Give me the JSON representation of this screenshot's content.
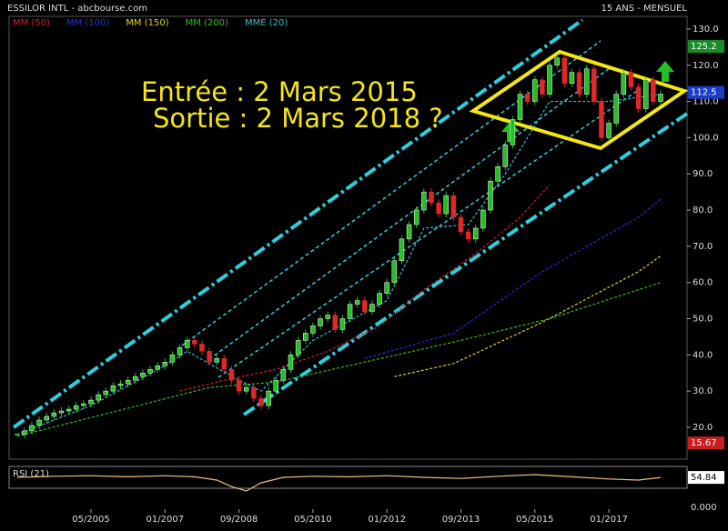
{
  "header": {
    "title": "ESSILOR INTL - abcbourse.com",
    "period": "15 ANS - MENSUEL"
  },
  "chart_data": {
    "type": "candlestick",
    "categories": [
      null,
      null,
      null,
      null,
      null,
      null,
      null,
      null,
      null,
      null,
      "05/2005",
      null,
      null,
      null,
      null,
      null,
      null,
      null,
      null,
      null,
      "01/2007",
      null,
      null,
      null,
      null,
      null,
      null,
      null,
      null,
      null,
      "09/2008",
      null,
      null,
      null,
      null,
      null,
      null,
      null,
      null,
      null,
      "05/2010",
      null,
      null,
      null,
      null,
      null,
      null,
      null,
      null,
      null,
      "01/2012",
      null,
      null,
      null,
      null,
      null,
      null,
      null,
      null,
      null,
      "09/2013",
      null,
      null,
      null,
      null,
      null,
      null,
      null,
      null,
      null,
      "05/2015",
      null,
      null,
      null,
      null,
      null,
      null,
      null,
      null,
      null,
      "01/2017",
      null,
      null,
      null,
      null,
      null,
      null,
      null
    ],
    "xlim": [
      -1.07,
      90.57
    ],
    "values": [
      18,
      19,
      20.5,
      22,
      23,
      24,
      24.5,
      25,
      26,
      26.5,
      27.5,
      29,
      30,
      31.5,
      32,
      33,
      34,
      35,
      36,
      37,
      38,
      40,
      42,
      44,
      43,
      41,
      38,
      39,
      36,
      33,
      30,
      31,
      28,
      26,
      30,
      33,
      36,
      40,
      44,
      46,
      48,
      50,
      51,
      47,
      50,
      54,
      55,
      52,
      54,
      57,
      60,
      66,
      72,
      76,
      80,
      85,
      82,
      79,
      84,
      78,
      74,
      72,
      75,
      80,
      88,
      92,
      98,
      105,
      112,
      110,
      116,
      112,
      120,
      122,
      115,
      118,
      112,
      119,
      110,
      100,
      104,
      112,
      118,
      114,
      108,
      116,
      110,
      112
    ],
    "up_color": "#22c022",
    "down_color": "#e02828",
    "ylim": [
      11.2,
      133.5
    ],
    "yticks": [
      {
        "value": 20,
        "label": "20.0"
      },
      {
        "value": 30,
        "label": "30.0"
      },
      {
        "value": 40,
        "label": "40.0"
      },
      {
        "value": 50,
        "label": "50.0"
      },
      {
        "value": 60,
        "label": "60.0"
      },
      {
        "value": 70,
        "label": "70.0"
      },
      {
        "value": 80,
        "label": "80.0"
      },
      {
        "value": 90,
        "label": "90.0"
      },
      {
        "value": 100,
        "label": "100.0"
      },
      {
        "value": 110,
        "label": "110.0"
      },
      {
        "value": 120,
        "label": "120.0"
      },
      {
        "value": 130,
        "label": "130.0"
      }
    ],
    "series": [
      {
        "name": "MM (50)",
        "color": "#d02020",
        "x": [
          22,
          28,
          35,
          42,
          49,
          55,
          62,
          68,
          72
        ],
        "values": [
          30,
          33,
          36,
          41,
          48,
          58,
          68,
          78,
          87
        ]
      },
      {
        "name": "MM (100)",
        "color": "#2030e0",
        "x": [
          47,
          59,
          71,
          84,
          87
        ],
        "values": [
          39,
          46,
          63,
          78,
          83
        ]
      },
      {
        "name": "MM (150)",
        "color": "#e0d020",
        "x": [
          51,
          59,
          71,
          84,
          87
        ],
        "values": [
          34,
          37.6,
          49,
          63,
          67.3
        ]
      },
      {
        "name": "MM (200)",
        "color": "#30c020",
        "x": [
          0,
          26,
          35,
          60,
          72,
          87
        ],
        "values": [
          17.5,
          31,
          32.5,
          44,
          50,
          60
        ]
      },
      {
        "name": "MME (20)",
        "color": "#30c0d0",
        "x": [
          0,
          10,
          20,
          23,
          30,
          33,
          40,
          50,
          55,
          61,
          66,
          72,
          80,
          87
        ],
        "values": [
          18,
          26,
          37,
          41,
          33,
          30,
          44,
          55,
          75,
          76,
          90,
          110,
          110,
          112
        ]
      }
    ],
    "price_labels": [
      {
        "value": 125.2,
        "color": "#1a8a2a"
      },
      {
        "value": 112.5,
        "color": "#1b3cc8"
      },
      {
        "value": 15.67,
        "color": "#c81e1e"
      }
    ],
    "annotations": [
      "Entrée : 2 Mars 2015",
      "Sortie : 2 Mars 2018 ?"
    ],
    "rsi": {
      "name": "RSI (21)",
      "color": "#f0c080",
      "ylim": [
        0,
        100
      ],
      "bottom_tick": {
        "value": 0,
        "label": "0.000"
      },
      "x": [
        0,
        5,
        10,
        15,
        20,
        24,
        27,
        29,
        31,
        33,
        36,
        40,
        45,
        50,
        55,
        60,
        65,
        70,
        75,
        80,
        84,
        87
      ],
      "values": [
        55,
        57,
        58,
        56,
        58,
        56,
        50,
        38,
        30,
        45,
        55,
        57,
        56,
        58,
        55,
        53,
        57,
        60,
        56,
        52,
        50,
        54.84
      ]
    }
  }
}
